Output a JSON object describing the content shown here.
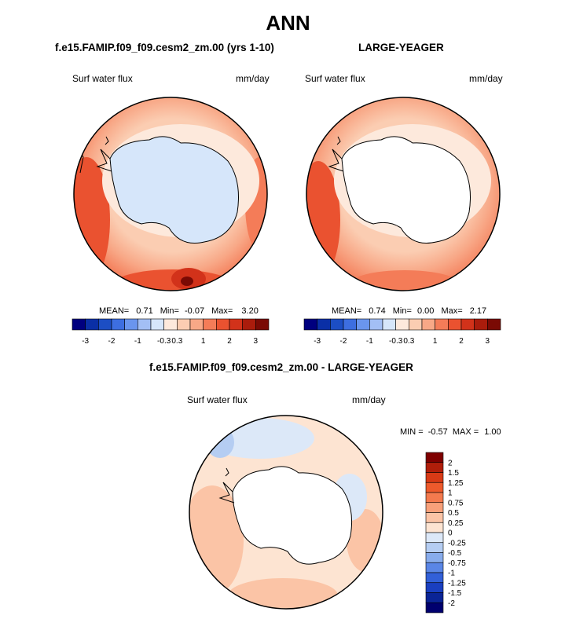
{
  "page_title": "ANN",
  "panels": [
    {
      "case": "f.e15.FAMIP.f09_f09.cesm2_zm.00 (yrs 1-10)",
      "variable": "Surf water flux",
      "units": "mm/day",
      "stats": {
        "mean_label": "MEAN=",
        "mean": "0.71",
        "min_label": "Min=",
        "min": "-0.07",
        "max_label": "Max=",
        "max": "3.20"
      }
    },
    {
      "case": "LARGE-YEAGER",
      "variable": "Surf water flux",
      "units": "mm/day",
      "stats": {
        "mean_label": "MEAN=",
        "mean": "0.74",
        "min_label": "Min=",
        "min": "0.00",
        "max_label": "Max=",
        "max": "2.17"
      }
    },
    {
      "case": "f.e15.FAMIP.f09_f09.cesm2_zm.00 - LARGE-YEAGER",
      "variable": "Surf water flux",
      "units": "mm/day",
      "stats": {
        "min_label": "MIN =",
        "min": "-0.57",
        "max_label": "MAX =",
        "max": "1.00"
      }
    }
  ],
  "chart_data": [
    {
      "type": "heatmap",
      "projection": "south-polar-stereographic",
      "title": "f.e15.FAMIP.f09_f09.cesm2_zm.00 (yrs 1-10)",
      "variable": "Surf water flux",
      "units": "mm/day",
      "mean": 0.71,
      "min": -0.07,
      "max": 3.2,
      "colorbar": {
        "orientation": "horizontal",
        "tick_labels": [
          "-3",
          "-2",
          "-1",
          "-0.3",
          "0.3",
          "1",
          "2",
          "3"
        ],
        "colors": [
          "#00007f",
          "#0a2fa6",
          "#1c4ec4",
          "#3d6ee0",
          "#6a95ee",
          "#a3bff5",
          "#d6e6fa",
          "#fde9dc",
          "#fbcdb2",
          "#f8a887",
          "#f47c58",
          "#ea5230",
          "#d2321a",
          "#aa1c0c",
          "#7a0a04"
        ]
      }
    },
    {
      "type": "heatmap",
      "projection": "south-polar-stereographic",
      "title": "LARGE-YEAGER",
      "variable": "Surf water flux",
      "units": "mm/day",
      "mean": 0.74,
      "min": 0.0,
      "max": 2.17,
      "colorbar": {
        "orientation": "horizontal",
        "tick_labels": [
          "-3",
          "-2",
          "-1",
          "-0.3",
          "0.3",
          "1",
          "2",
          "3"
        ],
        "colors": [
          "#00007f",
          "#0a2fa6",
          "#1c4ec4",
          "#3d6ee0",
          "#6a95ee",
          "#a3bff5",
          "#d6e6fa",
          "#fde9dc",
          "#fbcdb2",
          "#f8a887",
          "#f47c58",
          "#ea5230",
          "#d2321a",
          "#aa1c0c",
          "#7a0a04"
        ]
      }
    },
    {
      "type": "heatmap",
      "projection": "south-polar-stereographic",
      "title": "f.e15.FAMIP.f09_f09.cesm2_zm.00 - LARGE-YEAGER",
      "variable": "Surf water flux",
      "units": "mm/day",
      "min": -0.57,
      "max": 1.0,
      "colorbar": {
        "orientation": "vertical",
        "tick_labels": [
          "2",
          "1.5",
          "1.25",
          "1",
          "0.75",
          "0.5",
          "0.25",
          "0",
          "-0.25",
          "-0.5",
          "-0.75",
          "-1",
          "-1.25",
          "-1.5",
          "-2"
        ],
        "colors": [
          "#7f0000",
          "#b01e0a",
          "#d83a16",
          "#ee5a2c",
          "#f47a4e",
          "#f8a07a",
          "#fbc4a6",
          "#fde4d2",
          "#dce8f8",
          "#b5cdf2",
          "#88acec",
          "#5a86e6",
          "#3260d8",
          "#1a3fc0",
          "#0a2496",
          "#00006e"
        ]
      }
    }
  ]
}
